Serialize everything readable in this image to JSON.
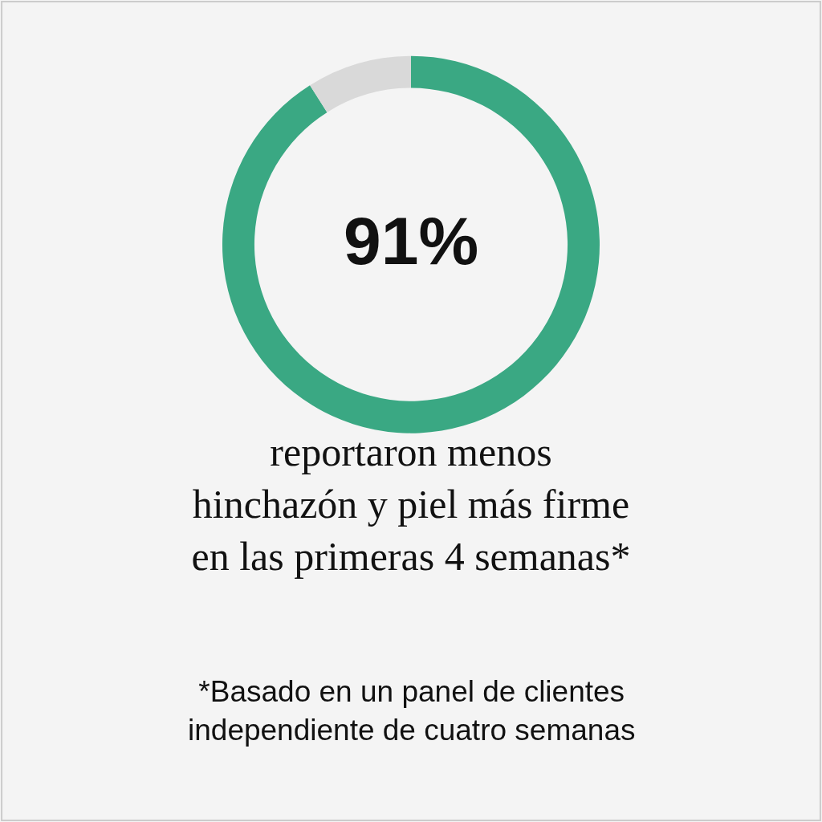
{
  "chart_data": {
    "type": "donut",
    "title": "reportaron menos\nhinchazón y piel más firme\nen las primeras 4 semanas*",
    "categories": [
      null,
      null
    ],
    "values": [
      91,
      9
    ],
    "colors": [
      "#3aa883",
      "#d9d9d9"
    ],
    "annotations": [
      "91%",
      "*Basado en un panel de clientes\nindependiente de cuatro semanas"
    ],
    "legend": false
  }
}
